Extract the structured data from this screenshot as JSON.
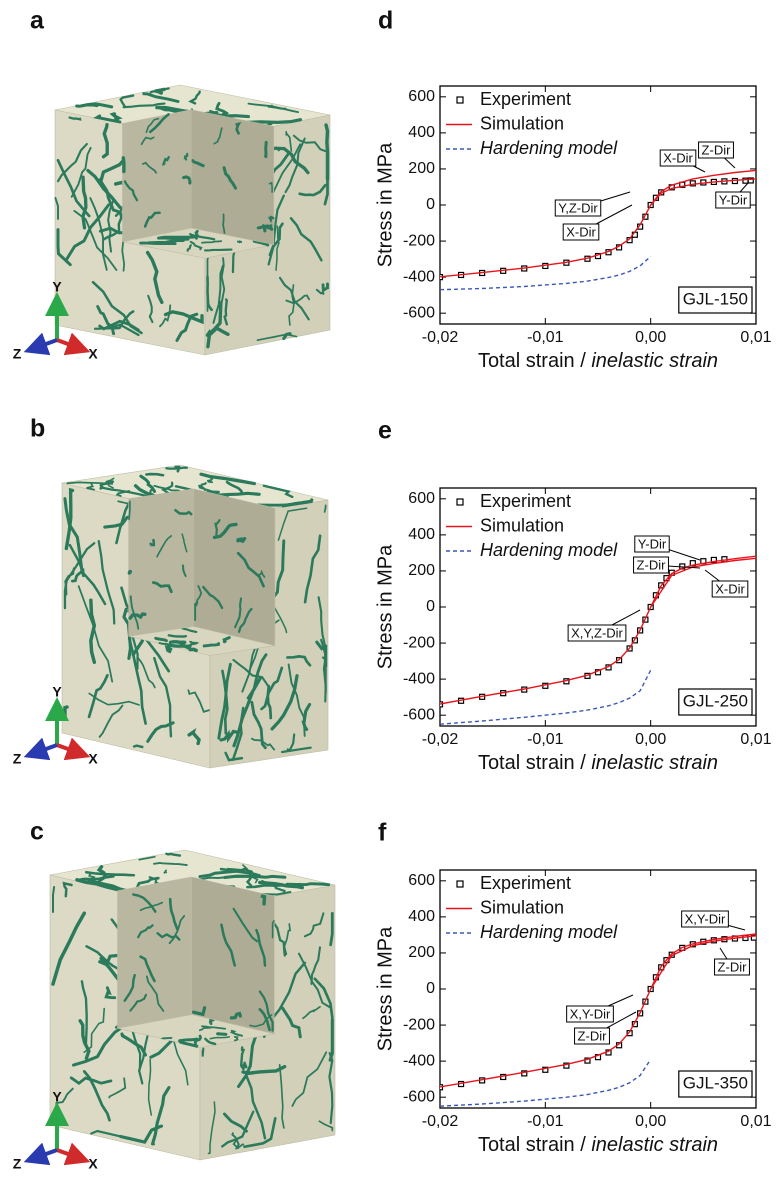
{
  "panel_labels": [
    "a",
    "b",
    "c",
    "d",
    "e",
    "f"
  ],
  "axis_triads": [
    {
      "y": "Y",
      "z": "Z",
      "x": "X"
    },
    {
      "y": "Y",
      "z": "Z",
      "x": "X"
    },
    {
      "y": "Y",
      "z": "Z",
      "x": "X"
    }
  ],
  "chart_data": [
    {
      "type": "line",
      "label": "GJL-150",
      "ylabel": "Stress in MPa",
      "xlabel": [
        "Total strain / ",
        "inelastic strain"
      ],
      "xlim": [
        -0.02,
        0.01
      ],
      "ylim": [
        -660,
        660
      ],
      "xticks": [
        {
          "value": -0.02,
          "label": "-0,02"
        },
        {
          "value": -0.01,
          "label": "-0,01"
        },
        {
          "value": 0,
          "label": "0,00"
        },
        {
          "value": 0.01,
          "label": "0,01"
        }
      ],
      "yticks": [
        -600,
        -400,
        -200,
        0,
        200,
        400,
        600
      ],
      "series": [
        {
          "name": "Experiment",
          "color": "#000000",
          "style": "markers",
          "x": [
            -0.02,
            -0.018,
            -0.016,
            -0.014,
            -0.012,
            -0.01,
            -0.008,
            -0.006,
            -0.005,
            -0.004,
            -0.003,
            -0.002,
            -0.0015,
            -0.001,
            -0.0005,
            0,
            0.0005,
            0.001,
            0.002,
            0.003,
            0.004,
            0.005,
            0.006,
            0.007,
            0.008,
            0.009,
            0.0095
          ],
          "values": [
            -400,
            -388,
            -377,
            -365,
            -352,
            -338,
            -320,
            -298,
            -283,
            -262,
            -235,
            -195,
            -165,
            -120,
            -65,
            0,
            40,
            70,
            98,
            112,
            120,
            125,
            128,
            131,
            133,
            135,
            136
          ]
        },
        {
          "name": "Simulation",
          "color": "#e8141c",
          "style": "line",
          "x": [
            -0.02,
            -0.016,
            -0.012,
            -0.008,
            -0.006,
            -0.004,
            -0.003,
            -0.002,
            -0.001,
            0,
            0.001,
            0.002,
            0.004,
            0.006,
            0.008,
            0.01
          ],
          "values": [
            -398,
            -375,
            -350,
            -318,
            -295,
            -258,
            -228,
            -188,
            -110,
            0,
            75,
            110,
            145,
            165,
            180,
            192
          ]
        },
        {
          "color": "#e8141c",
          "style": "line",
          "x": [
            0,
            0.001,
            0.002,
            0.004,
            0.006,
            0.008,
            0.01
          ],
          "values": [
            0,
            65,
            92,
            115,
            128,
            137,
            145
          ]
        },
        {
          "name": "Hardening model",
          "color": "#3a57b5",
          "style": "dashed",
          "x": [
            -0.02,
            -0.016,
            -0.012,
            -0.008,
            -0.006,
            -0.004,
            -0.003,
            -0.002,
            -0.001,
            0
          ],
          "values": [
            -470,
            -463,
            -452,
            -435,
            -422,
            -402,
            -388,
            -368,
            -338,
            -285
          ]
        }
      ],
      "annotations": [
        "X-Dir",
        "Z-Dir",
        "Y-Dir",
        "Y,Z-Dir",
        "X-Dir"
      ]
    },
    {
      "type": "line",
      "label": "GJL-250",
      "ylabel": "Stress in MPa",
      "xlabel": [
        "Total strain / ",
        "inelastic strain"
      ],
      "xlim": [
        -0.02,
        0.01
      ],
      "ylim": [
        -660,
        660
      ],
      "xticks": [
        {
          "value": -0.02,
          "label": "-0,02"
        },
        {
          "value": -0.01,
          "label": "-0,01"
        },
        {
          "value": 0,
          "label": "0,00"
        },
        {
          "value": 0.01,
          "label": "0,01"
        }
      ],
      "yticks": [
        -600,
        -400,
        -200,
        0,
        200,
        400,
        600
      ],
      "series": [
        {
          "name": "Experiment",
          "color": "#000000",
          "style": "markers",
          "x": [
            -0.02,
            -0.018,
            -0.016,
            -0.014,
            -0.012,
            -0.01,
            -0.008,
            -0.006,
            -0.005,
            -0.004,
            -0.003,
            -0.002,
            -0.0015,
            -0.001,
            -0.0005,
            0,
            0.0005,
            0.001,
            0.0015,
            0.002,
            0.003,
            0.004,
            0.005,
            0.006,
            0.007
          ],
          "values": [
            -540,
            -520,
            -498,
            -478,
            -458,
            -437,
            -412,
            -382,
            -362,
            -335,
            -295,
            -230,
            -185,
            -130,
            -70,
            0,
            65,
            120,
            160,
            190,
            225,
            243,
            254,
            261,
            265
          ]
        },
        {
          "name": "Simulation",
          "color": "#e8141c",
          "style": "line",
          "x": [
            -0.02,
            -0.016,
            -0.012,
            -0.008,
            -0.006,
            -0.004,
            -0.003,
            -0.002,
            -0.001,
            0,
            0.001,
            0.002,
            0.003,
            0.004,
            0.006,
            0.008,
            0.01
          ],
          "values": [
            -538,
            -495,
            -455,
            -408,
            -378,
            -330,
            -292,
            -228,
            -128,
            0,
            118,
            185,
            215,
            232,
            252,
            268,
            282
          ]
        },
        {
          "color": "#e8141c",
          "style": "line",
          "x": [
            0,
            0.002,
            0.004,
            0.006,
            0.008,
            0.01
          ],
          "values": [
            0,
            175,
            222,
            242,
            258,
            270
          ]
        },
        {
          "name": "Hardening model",
          "color": "#3a57b5",
          "style": "dashed",
          "x": [
            -0.02,
            -0.016,
            -0.012,
            -0.008,
            -0.006,
            -0.004,
            -0.003,
            -0.002,
            -0.001,
            0
          ],
          "values": [
            -650,
            -632,
            -612,
            -588,
            -572,
            -548,
            -530,
            -505,
            -465,
            -350
          ]
        }
      ],
      "annotations": [
        "Y-Dir",
        "Z-Dir",
        "X-Dir",
        "X,Y,Z-Dir"
      ]
    },
    {
      "type": "line",
      "label": "GJL-350",
      "ylabel": "Stress in MPa",
      "xlabel": [
        "Total strain / ",
        "inelastic strain"
      ],
      "xlim": [
        -0.02,
        0.01
      ],
      "ylim": [
        -660,
        660
      ],
      "xticks": [
        {
          "value": -0.02,
          "label": "-0,02"
        },
        {
          "value": -0.01,
          "label": "-0,01"
        },
        {
          "value": 0,
          "label": "0,00"
        },
        {
          "value": 0.01,
          "label": "0,01"
        }
      ],
      "yticks": [
        -600,
        -400,
        -200,
        0,
        200,
        400,
        600
      ],
      "series": [
        {
          "name": "Experiment",
          "color": "#000000",
          "style": "markers",
          "x": [
            -0.02,
            -0.018,
            -0.016,
            -0.014,
            -0.012,
            -0.01,
            -0.008,
            -0.006,
            -0.005,
            -0.004,
            -0.003,
            -0.002,
            -0.0015,
            -0.001,
            -0.0005,
            0,
            0.0005,
            0.001,
            0.0015,
            0.002,
            0.003,
            0.004,
            0.005,
            0.006,
            0.007,
            0.008,
            0.009,
            0.0098
          ],
          "values": [
            -545,
            -527,
            -507,
            -488,
            -468,
            -448,
            -425,
            -397,
            -378,
            -352,
            -312,
            -245,
            -195,
            -135,
            -70,
            0,
            65,
            120,
            160,
            190,
            228,
            248,
            262,
            270,
            276,
            280,
            283,
            285
          ]
        },
        {
          "name": "Simulation",
          "color": "#e8141c",
          "style": "line",
          "x": [
            -0.02,
            -0.016,
            -0.012,
            -0.008,
            -0.006,
            -0.004,
            -0.003,
            -0.002,
            -0.001,
            0,
            0.001,
            0.002,
            0.003,
            0.004,
            0.006,
            0.008,
            0.01
          ],
          "values": [
            -543,
            -503,
            -462,
            -418,
            -390,
            -345,
            -305,
            -238,
            -132,
            0,
            125,
            195,
            230,
            250,
            275,
            292,
            305
          ]
        },
        {
          "color": "#e8141c",
          "style": "line",
          "x": [
            0,
            0.002,
            0.004,
            0.006,
            0.008,
            0.01
          ],
          "values": [
            0,
            185,
            240,
            265,
            282,
            295
          ]
        },
        {
          "name": "Hardening model",
          "color": "#3a57b5",
          "style": "dashed",
          "x": [
            -0.02,
            -0.016,
            -0.012,
            -0.008,
            -0.006,
            -0.004,
            -0.003,
            -0.002,
            -0.001,
            0
          ],
          "values": [
            -650,
            -638,
            -622,
            -600,
            -585,
            -562,
            -545,
            -520,
            -480,
            -390
          ]
        }
      ],
      "annotations": [
        "X,Y-Dir",
        "Z-Dir",
        "X,Y-Dir",
        "Z-Dir"
      ]
    }
  ]
}
